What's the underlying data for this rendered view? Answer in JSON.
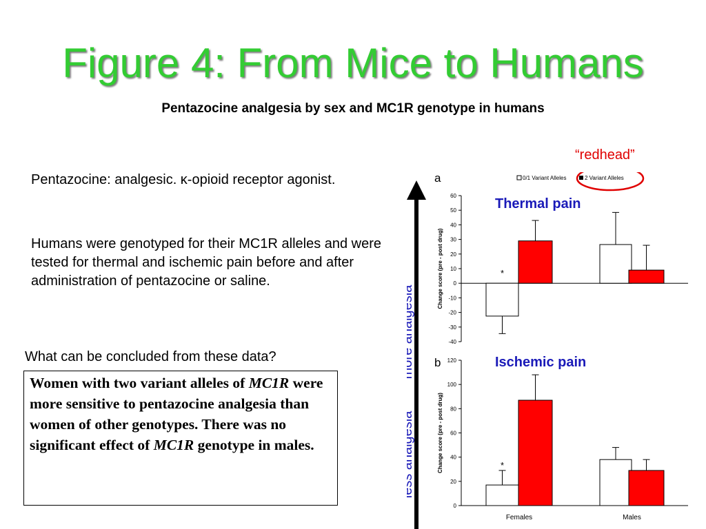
{
  "slide": {
    "title": "Figure 4: From Mice to Humans",
    "subtitle": "Pentazocine analgesia by sex and MC1R genotype in humans",
    "paragraph1": "Pentazocine: analgesic. κ-opioid receptor agonist.",
    "paragraph2": "Humans were genotyped for their MC1R alleles and were tested for thermal and ischemic pain before and after administration of pentazocine or saline.",
    "question": "What can be concluded from these data?",
    "conclusion": [
      {
        "text": "Women with two variant alleles of "
      },
      {
        "text": "MC1R",
        "italic": true
      },
      {
        "text": " were more sensitive to pentazocine analgesia than women of other genotypes.  There was no significant effect of "
      },
      {
        "text": "MC1R",
        "italic": true
      },
      {
        "text": " genotype in males."
      }
    ],
    "redhead_label": "“redhead”",
    "arrow_top_label": "more analgesia",
    "arrow_bottom_label": "less analgesia"
  },
  "colors": {
    "title": "#33cc33",
    "accent_red": "#ff0000",
    "label_blue": "#1a1ab8",
    "annotation_red": "#e00000"
  },
  "chart_data": [
    {
      "type": "bar",
      "panel_letter": "a",
      "title": "Thermal pain",
      "ylabel": "Change score (pre - post drug)",
      "ylim": [
        -40,
        60
      ],
      "yticks": [
        -40,
        -30,
        -20,
        -10,
        0,
        10,
        20,
        30,
        40,
        50,
        60
      ],
      "categories": [
        "Females",
        "Males"
      ],
      "legend": [
        "0/1 Variant Alleles",
        "2 Variant Alleles"
      ],
      "series": [
        {
          "name": "0/1 Variant Alleles",
          "fill": "#ffffff",
          "values": [
            -22.5,
            26.5
          ],
          "error": [
            12,
            22
          ]
        },
        {
          "name": "2 Variant Alleles",
          "fill": "#ff0000",
          "values": [
            29,
            9
          ],
          "error": [
            14,
            17
          ]
        }
      ],
      "annotations": [
        {
          "text": "*",
          "category": "Females",
          "series": "0/1 Variant Alleles"
        }
      ]
    },
    {
      "type": "bar",
      "panel_letter": "b",
      "title": "Ischemic pain",
      "ylabel": "Change score (pre - post drug)",
      "ylim": [
        0,
        120
      ],
      "yticks": [
        0,
        20,
        40,
        60,
        80,
        100,
        120
      ],
      "categories": [
        "Females",
        "Males"
      ],
      "series": [
        {
          "name": "0/1 Variant Alleles",
          "fill": "#ffffff",
          "values": [
            17,
            38
          ],
          "error": [
            12,
            10
          ]
        },
        {
          "name": "2 Variant Alleles",
          "fill": "#ff0000",
          "values": [
            87,
            29
          ],
          "error": [
            21,
            9
          ]
        }
      ],
      "annotations": [
        {
          "text": "*",
          "category": "Females",
          "series": "0/1 Variant Alleles"
        }
      ]
    }
  ]
}
